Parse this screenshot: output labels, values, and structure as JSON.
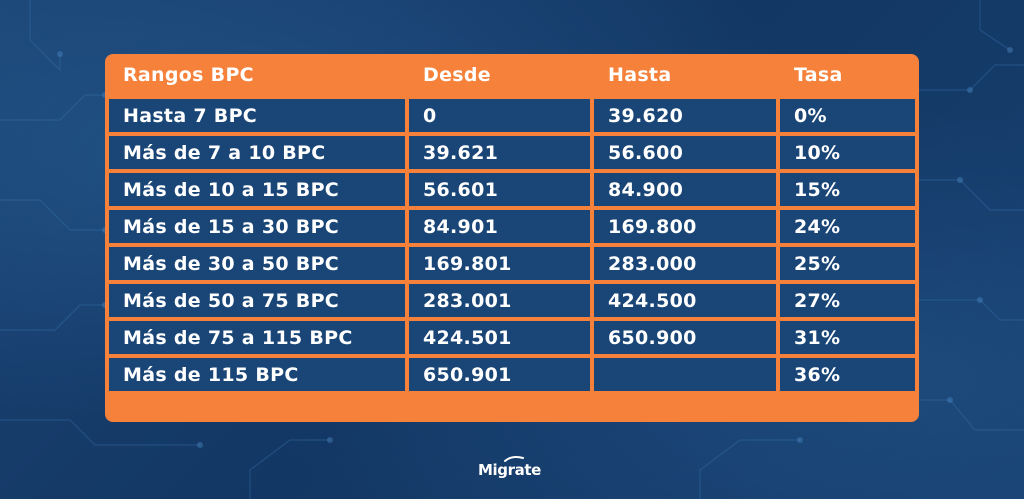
{
  "table": {
    "headers": [
      "Rangos BPC",
      "Desde",
      "Hasta",
      "Tasa"
    ],
    "rows": [
      [
        "Hasta 7 BPC",
        "0",
        "39.620",
        "0%"
      ],
      [
        "Más de 7 a 10 BPC",
        "39.621",
        "56.600",
        "10%"
      ],
      [
        "Más de 10 a 15 BPC",
        "56.601",
        "84.900",
        "15%"
      ],
      [
        "Más de 15 a 30 BPC",
        "84.901",
        "169.800",
        "24%"
      ],
      [
        "Más de 30 a 50 BPC",
        "169.801",
        "283.000",
        "25%"
      ],
      [
        "Más de 50 a 75 BPC",
        "283.001",
        "424.500",
        "27%"
      ],
      [
        "Más de 75 a 115 BPC",
        "424.501",
        "650.900",
        "31%"
      ],
      [
        "Más de 115 BPC",
        "650.901",
        "",
        "36%"
      ]
    ]
  },
  "logo": {
    "text": "Migrate"
  },
  "colors": {
    "background": "#153a66",
    "accent": "#f5813a",
    "cell": "#1a4677",
    "text": "#ffffff"
  }
}
